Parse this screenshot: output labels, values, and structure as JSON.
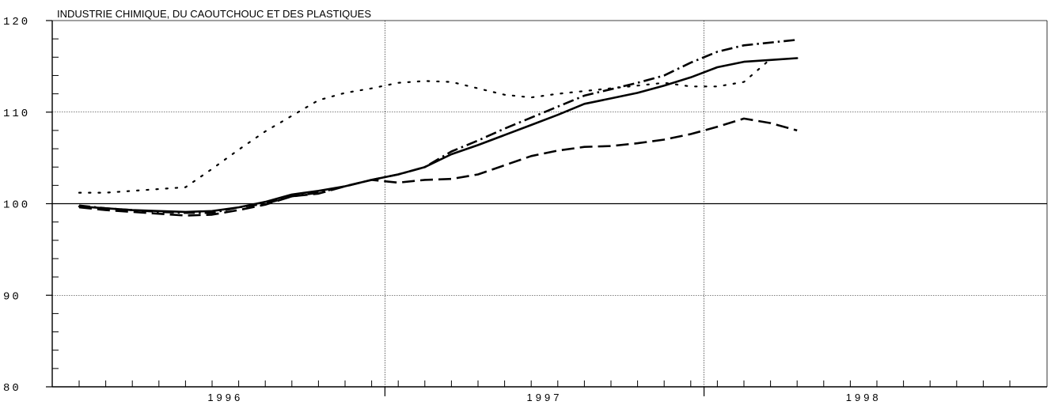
{
  "chart_data": {
    "type": "line",
    "title": "INDUSTRIE CHIMIQUE, DU CAOUTCHOUC ET DES PLASTIQUES",
    "xlabel": "",
    "ylabel": "",
    "ylim": [
      80,
      120
    ],
    "yticks": [
      "80",
      "90",
      "100",
      "110",
      "120"
    ],
    "xlim": [
      0,
      36
    ],
    "year_labels": [
      {
        "label": "1996",
        "x": 5.5
      },
      {
        "label": "1997",
        "x": 17.5
      },
      {
        "label": "1998",
        "x": 29.5
      }
    ],
    "month_ticks": 36,
    "grid": true,
    "x": [
      0,
      1,
      2,
      3,
      4,
      5,
      6,
      7,
      8,
      9,
      10,
      11,
      12,
      13,
      14,
      15,
      16,
      17,
      18,
      19,
      20,
      21,
      22,
      23,
      24,
      25,
      26,
      27,
      28
    ],
    "series": [
      {
        "style": "dotted",
        "values": [
          101.2,
          101.2,
          101.4,
          101.6,
          101.8,
          103.8,
          105.9,
          107.9,
          109.6,
          111.3,
          112.1,
          112.6,
          113.2,
          113.4,
          113.3,
          112.6,
          111.9,
          111.6,
          112.0,
          112.3,
          112.6,
          112.9,
          113.2,
          112.8,
          112.8,
          113.3,
          115.8,
          null,
          null
        ]
      },
      {
        "style": "solid",
        "values": [
          99.7,
          99.5,
          99.3,
          99.2,
          99.1,
          99.2,
          99.6,
          100.2,
          101.0,
          101.4,
          101.9,
          102.6,
          103.2,
          104.0,
          105.4,
          106.4,
          107.5,
          108.6,
          109.7,
          110.9,
          111.5,
          112.1,
          112.9,
          113.8,
          114.9,
          115.5,
          115.7,
          115.9,
          null
        ]
      },
      {
        "style": "dash-dot",
        "values": [
          99.8,
          99.5,
          99.3,
          99.1,
          99.0,
          99.0,
          99.6,
          100.0,
          100.8,
          101.2,
          101.9,
          102.6,
          103.2,
          104.0,
          105.7,
          106.9,
          108.2,
          109.4,
          110.6,
          111.8,
          112.5,
          113.2,
          114.0,
          115.4,
          116.6,
          117.3,
          117.6,
          117.9,
          null
        ]
      },
      {
        "style": "dashed",
        "values": [
          99.6,
          99.3,
          99.1,
          98.9,
          98.7,
          98.8,
          99.3,
          99.9,
          100.8,
          101.1,
          101.9,
          102.6,
          102.3,
          102.6,
          102.7,
          103.2,
          104.2,
          105.2,
          105.8,
          106.2,
          106.3,
          106.6,
          107.0,
          107.6,
          108.4,
          109.3,
          108.8,
          108.0,
          null
        ]
      }
    ]
  }
}
